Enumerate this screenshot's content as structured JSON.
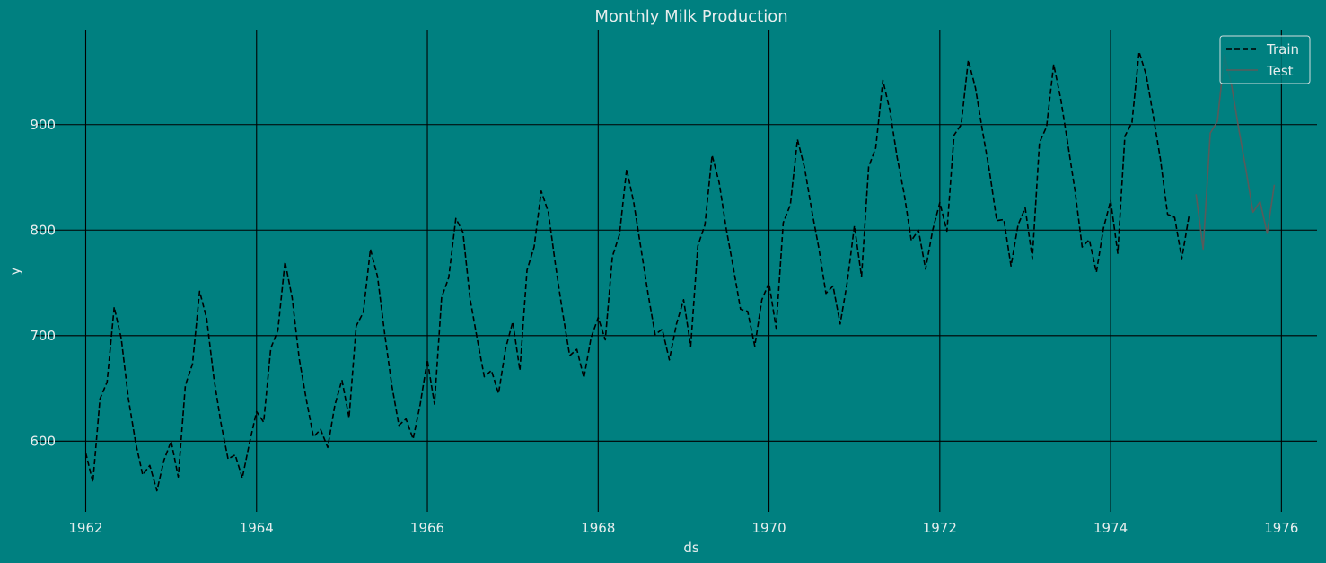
{
  "chart_data": {
    "type": "line",
    "title": "Monthly Milk Production",
    "xlabel": "ds",
    "ylabel": "y",
    "x_ticks": [
      "1962",
      "1964",
      "1966",
      "1968",
      "1970",
      "1972",
      "1974",
      "1976"
    ],
    "y_ticks": [
      600,
      700,
      800,
      900
    ],
    "xlim": [
      "1961-06-01",
      "1976-06-01"
    ],
    "ylim": [
      533,
      990
    ],
    "grid": true,
    "legend_position": "top-right",
    "colors": {
      "background": "#008080",
      "grid": "#000000",
      "train": "#000000",
      "test": "#5a5a5a",
      "text": "#e6eded"
    },
    "series": [
      {
        "name": "Train",
        "style": "dashed",
        "start": "1962-01",
        "frequency": "monthly",
        "values": [
          589,
          561,
          640,
          656,
          727,
          697,
          640,
          599,
          568,
          577,
          553,
          582,
          600,
          566,
          653,
          673,
          742,
          716,
          660,
          617,
          583,
          587,
          565,
          598,
          628,
          618,
          688,
          705,
          770,
          736,
          678,
          639,
          604,
          611,
          594,
          634,
          658,
          622,
          709,
          722,
          782,
          756,
          702,
          653,
          615,
          621,
          602,
          635,
          677,
          635,
          736,
          755,
          811,
          798,
          735,
          697,
          661,
          667,
          645,
          688,
          713,
          667,
          762,
          784,
          837,
          817,
          767,
          722,
          681,
          687,
          660,
          698,
          717,
          696,
          775,
          796,
          858,
          826,
          783,
          740,
          701,
          706,
          677,
          711,
          734,
          690,
          785,
          805,
          871,
          845,
          801,
          764,
          725,
          723,
          690,
          734,
          750,
          707,
          807,
          824,
          886,
          859,
          819,
          783,
          740,
          747,
          711,
          751,
          804,
          756,
          860,
          878,
          942,
          913,
          869,
          834,
          790,
          800,
          763,
          800,
          826,
          799,
          890,
          900,
          961,
          935,
          894,
          855,
          809,
          810,
          766,
          805,
          821,
          773,
          883,
          898,
          957,
          924,
          881,
          837,
          784,
          791,
          760,
          802,
          828,
          778,
          889,
          902,
          969,
          947,
          908,
          867,
          815,
          812,
          773,
          813
        ]
      },
      {
        "name": "Test",
        "style": "solid",
        "start": "1975-01",
        "frequency": "monthly",
        "values": [
          834,
          782,
          892,
          903,
          966,
          937,
          896,
          858,
          817,
          827,
          797,
          843
        ]
      }
    ]
  }
}
